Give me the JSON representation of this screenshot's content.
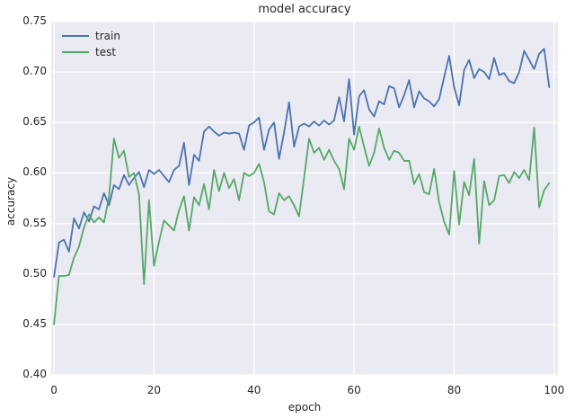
{
  "chart_data": {
    "type": "line",
    "title": "model accuracy",
    "xlabel": "epoch",
    "ylabel": "accuracy",
    "x_tick_labels": [
      "0",
      "20",
      "40",
      "60",
      "80",
      "100"
    ],
    "x_tick_values": [
      0,
      20,
      40,
      60,
      80,
      100
    ],
    "y_tick_labels": [
      "0.40",
      "0.45",
      "0.50",
      "0.55",
      "0.60",
      "0.65",
      "0.70",
      "0.75"
    ],
    "y_tick_values": [
      0.4,
      0.45,
      0.5,
      0.55,
      0.6,
      0.65,
      0.7,
      0.75
    ],
    "ylim": [
      0.4,
      0.75
    ],
    "xlim": [
      -0.55,
      100.75
    ],
    "grid": true,
    "legend_position": "upper left",
    "plot_background": "#eaeaf2",
    "grid_color": "#ffffff",
    "x_start": 0,
    "x_step": 1,
    "series": [
      {
        "name": "train",
        "color": "#4c72b0",
        "values": [
          0.497,
          0.531,
          0.534,
          0.522,
          0.555,
          0.545,
          0.561,
          0.552,
          0.567,
          0.564,
          0.58,
          0.568,
          0.588,
          0.584,
          0.598,
          0.588,
          0.595,
          0.601,
          0.586,
          0.603,
          0.599,
          0.603,
          0.597,
          0.591,
          0.603,
          0.607,
          0.63,
          0.588,
          0.618,
          0.612,
          0.641,
          0.646,
          0.641,
          0.637,
          0.64,
          0.639,
          0.64,
          0.639,
          0.623,
          0.647,
          0.65,
          0.655,
          0.623,
          0.643,
          0.65,
          0.614,
          0.64,
          0.67,
          0.626,
          0.646,
          0.649,
          0.646,
          0.651,
          0.647,
          0.652,
          0.648,
          0.652,
          0.675,
          0.651,
          0.693,
          0.638,
          0.676,
          0.682,
          0.663,
          0.656,
          0.671,
          0.668,
          0.686,
          0.684,
          0.665,
          0.677,
          0.692,
          0.665,
          0.681,
          0.674,
          0.671,
          0.666,
          0.673,
          0.695,
          0.716,
          0.685,
          0.667,
          0.702,
          0.712,
          0.694,
          0.703,
          0.7,
          0.693,
          0.714,
          0.697,
          0.699,
          0.691,
          0.689,
          0.7,
          0.721,
          0.712,
          0.703,
          0.718,
          0.723,
          0.685
        ]
      },
      {
        "name": "test",
        "color": "#55a868",
        "values": [
          0.45,
          0.498,
          0.498,
          0.499,
          0.516,
          0.527,
          0.546,
          0.559,
          0.551,
          0.556,
          0.551,
          0.576,
          0.634,
          0.615,
          0.622,
          0.596,
          0.6,
          0.579,
          0.49,
          0.573,
          0.508,
          0.532,
          0.553,
          0.548,
          0.543,
          0.563,
          0.577,
          0.543,
          0.576,
          0.568,
          0.589,
          0.564,
          0.603,
          0.582,
          0.6,
          0.585,
          0.594,
          0.573,
          0.6,
          0.597,
          0.6,
          0.609,
          0.591,
          0.562,
          0.559,
          0.58,
          0.573,
          0.577,
          0.568,
          0.557,
          0.595,
          0.634,
          0.62,
          0.625,
          0.613,
          0.623,
          0.612,
          0.604,
          0.584,
          0.634,
          0.623,
          0.646,
          0.626,
          0.607,
          0.62,
          0.644,
          0.625,
          0.613,
          0.622,
          0.62,
          0.612,
          0.612,
          0.589,
          0.599,
          0.581,
          0.579,
          0.604,
          0.571,
          0.552,
          0.539,
          0.602,
          0.549,
          0.591,
          0.578,
          0.614,
          0.53,
          0.592,
          0.568,
          0.573,
          0.597,
          0.598,
          0.59,
          0.601,
          0.595,
          0.603,
          0.593,
          0.645,
          0.566,
          0.583,
          0.59
        ]
      }
    ]
  }
}
